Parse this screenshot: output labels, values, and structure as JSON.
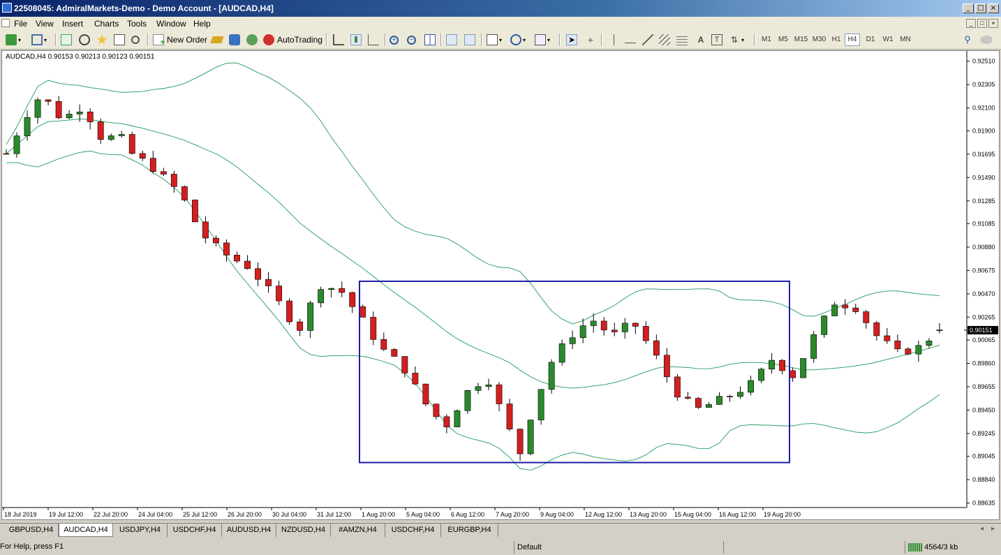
{
  "window": {
    "title": "22508045: AdmiralMarkets-Demo - Demo Account - [AUDCAD,H4]"
  },
  "menu": {
    "items": [
      {
        "label": "File"
      },
      {
        "label": "View"
      },
      {
        "label": "Insert"
      },
      {
        "label": "Charts"
      },
      {
        "label": "Tools"
      },
      {
        "label": "Window"
      },
      {
        "label": "Help"
      }
    ]
  },
  "toolbar": {
    "new_order_label": "New Order",
    "autotrading_label": "AutoTrading",
    "timeframes": [
      "M1",
      "M5",
      "M15",
      "M30",
      "H1",
      "H4",
      "D1",
      "W1",
      "MN"
    ],
    "active_timeframe": "H4"
  },
  "chart": {
    "header_text": "AUDCAD,H4  0.90153 0.90213 0.90123 0.90151",
    "current_price": "0.90151",
    "price_ticks": [
      "0.92510",
      "0.92305",
      "0.92100",
      "0.91900",
      "0.91695",
      "0.91490",
      "0.91285",
      "0.91085",
      "0.90880",
      "0.90675",
      "0.90470",
      "0.90265",
      "0.90065",
      "0.89860",
      "0.89655",
      "0.89450",
      "0.89245",
      "0.89045",
      "0.88840",
      "0.88635"
    ],
    "time_ticks": [
      "18 Jul 2019",
      "19 Jul 12:00",
      "22 Jul 20:00",
      "24 Jul 04:00",
      "25 Jul 12:00",
      "26 Jul 20:00",
      "30 Jul 04:00",
      "31 Jul 12:00",
      "1 Aug 20:00",
      "5 Aug 04:00",
      "6 Aug 12:00",
      "7 Aug 20:00",
      "9 Aug 04:00",
      "12 Aug 12:00",
      "13 Aug 20:00",
      "15 Aug 04:00",
      "16 Aug 12:00",
      "19 Aug 20:00"
    ],
    "colors": {
      "bull": "#2b8a2b",
      "bear": "#d41f1f",
      "bands": "#1f9a5a",
      "box": "#1c1ca8"
    }
  },
  "chart_data": {
    "type": "candlestick",
    "symbol": "AUDCAD",
    "timeframe": "H4",
    "ylim": [
      0.88635,
      0.926
    ],
    "x_start": "18 Jul 2019",
    "x_end": "19 Aug 20:00",
    "bar_count": 130,
    "indicator": "Bollinger Bands",
    "last": {
      "open": 0.90153,
      "high": 0.90213,
      "low": 0.90123,
      "close": 0.90151
    },
    "highlight_box": {
      "price_top": 0.9058,
      "price_bottom": 0.8899,
      "from": "1 Aug 20:00",
      "to": "19 Aug 20:00"
    }
  },
  "tabs": [
    "GBPUSD,H4",
    "AUDCAD,H4",
    "USDJPY,H4",
    "USDCHF,H4",
    "AUDUSD,H4",
    "NZDUSD,H4",
    "#AMZN,H4",
    "USDCHF,H4",
    "EURGBP,H4"
  ],
  "active_tab": "AUDCAD,H4",
  "status": {
    "help": "For Help, press F1",
    "profile": "Default",
    "traffic": "4564/3 kb"
  }
}
